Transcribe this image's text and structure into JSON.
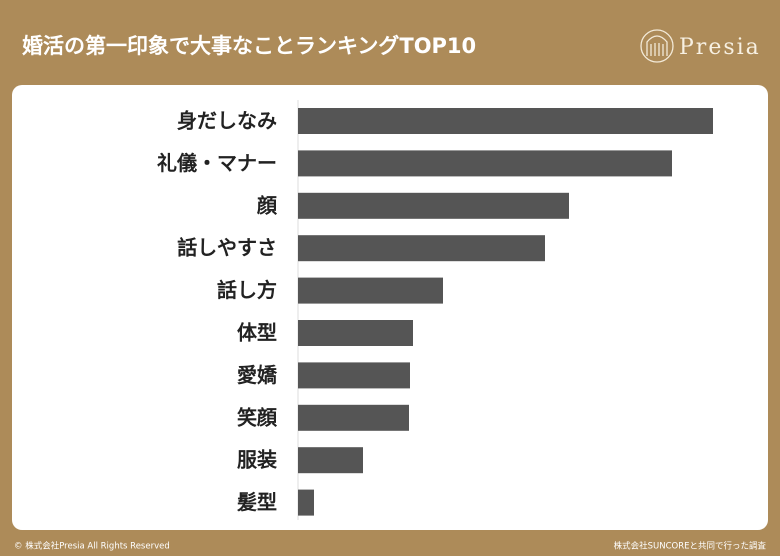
{
  "logo": "Presia",
  "footer": {
    "copyright": "© 株式会社Presia All Rights Reserved",
    "source": "株式会社SUNCOREと共同で行った調査"
  },
  "chart_data": {
    "type": "bar",
    "horizontal": true,
    "title": "婚活の第一印象で大事なことランキングTOP10",
    "categories": [
      "身だしなみ",
      "礼儀・マナー",
      "顔",
      "話しやすさ",
      "話し方",
      "体型",
      "愛嬌",
      "笑顔",
      "服装",
      "髪型"
    ],
    "values": [
      415,
      374,
      271,
      247,
      145,
      115,
      112,
      111,
      65,
      16
    ],
    "xlim": [
      0,
      415
    ],
    "color": "#555555"
  }
}
